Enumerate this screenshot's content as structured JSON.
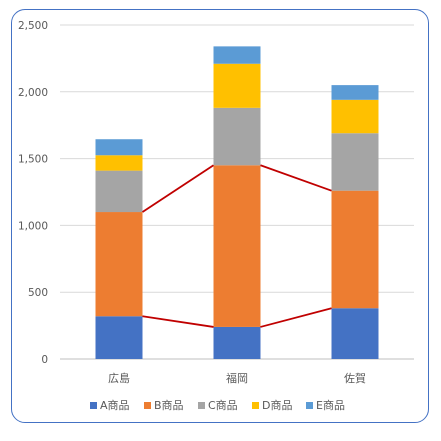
{
  "chart_data": {
    "type": "bar",
    "stacked": true,
    "categories": [
      "広島",
      "福岡",
      "佐賀"
    ],
    "series": [
      {
        "name": "A商品",
        "color": "#4472c4",
        "values": [
          320,
          240,
          380
        ]
      },
      {
        "name": "B商品",
        "color": "#ed7d31",
        "values": [
          780,
          1210,
          880
        ]
      },
      {
        "name": "C商品",
        "color": "#a5a5a5",
        "values": [
          310,
          430,
          430
        ]
      },
      {
        "name": "D商品",
        "color": "#ffc000",
        "values": [
          115,
          330,
          250
        ]
      },
      {
        "name": "E商品",
        "color": "#5b9bd5",
        "values": [
          120,
          130,
          110
        ]
      }
    ],
    "series_lines": {
      "color": "#c00000",
      "note": "lines connect the tops of A商品 and B商品 segments across categories"
    },
    "ylim": [
      0,
      2500
    ],
    "yticks": [
      0,
      500,
      1000,
      1500,
      2000,
      2500
    ],
    "ytick_labels": [
      "0",
      "500",
      "1,000",
      "1,500",
      "2,000",
      "2,500"
    ],
    "grid": true,
    "legend": "bottom"
  }
}
